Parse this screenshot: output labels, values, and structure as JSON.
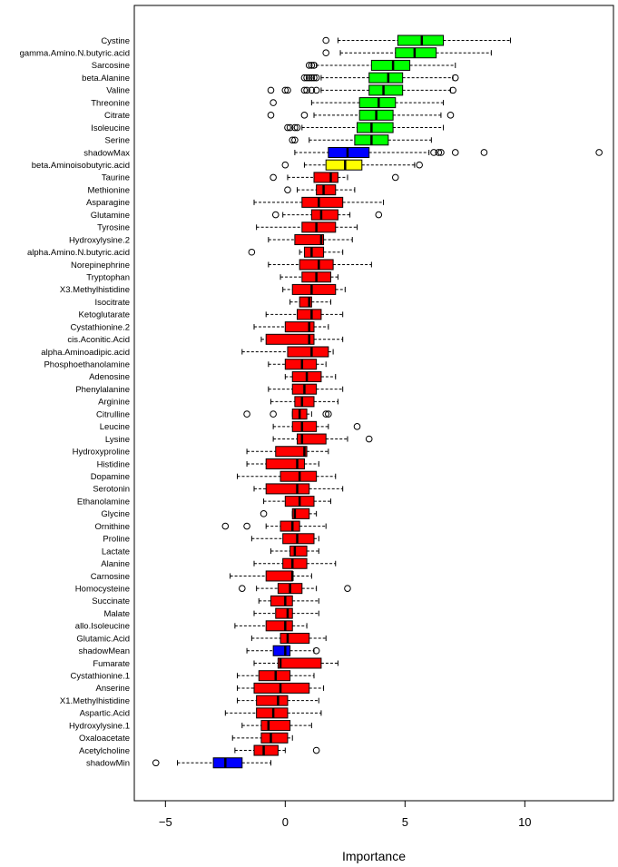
{
  "chart_data": {
    "type": "boxplot",
    "xlabel": "Importance",
    "ylabel": "",
    "xlim": [
      -6.3,
      13.7
    ],
    "xticks": [
      -5,
      0,
      5,
      10
    ],
    "colors": {
      "confirmed": "#00ff00",
      "tentative": "#ffff00",
      "rejected": "#ff0000",
      "shadow": "#0000ff"
    },
    "variables": [
      {
        "name": "Cystine",
        "status": "confirmed",
        "wlo": 2.2,
        "q1": 4.7,
        "med": 5.7,
        "q3": 6.6,
        "whi": 9.4,
        "outliers": [
          1.7
        ]
      },
      {
        "name": "gamma.Amino.N.butyric.acid",
        "status": "confirmed",
        "wlo": 2.3,
        "q1": 4.6,
        "med": 5.4,
        "q3": 6.3,
        "whi": 8.6,
        "outliers": [
          1.7
        ]
      },
      {
        "name": "Sarcosine",
        "status": "confirmed",
        "wlo": 1.3,
        "q1": 3.6,
        "med": 4.5,
        "q3": 5.2,
        "whi": 7.1,
        "outliers": [
          1.0,
          1.1,
          1.2
        ]
      },
      {
        "name": "beta.Alanine",
        "status": "confirmed",
        "wlo": 1.5,
        "q1": 3.5,
        "med": 4.3,
        "q3": 4.9,
        "whi": 7.0,
        "outliers": [
          0.8,
          0.9,
          1.0,
          1.1,
          1.2,
          1.3,
          7.1
        ]
      },
      {
        "name": "Valine",
        "status": "confirmed",
        "wlo": 1.5,
        "q1": 3.5,
        "med": 4.1,
        "q3": 4.9,
        "whi": 6.9,
        "outliers": [
          -0.6,
          0.0,
          0.1,
          0.8,
          0.9,
          1.1,
          1.3,
          7.0
        ]
      },
      {
        "name": "Threonine",
        "status": "confirmed",
        "wlo": 1.1,
        "q1": 3.1,
        "med": 3.9,
        "q3": 4.6,
        "whi": 6.6,
        "outliers": [
          -0.5
        ]
      },
      {
        "name": "Citrate",
        "status": "confirmed",
        "wlo": 1.2,
        "q1": 3.1,
        "med": 3.8,
        "q3": 4.5,
        "whi": 6.5,
        "outliers": [
          -0.6,
          0.8,
          6.9
        ]
      },
      {
        "name": "Isoleucine",
        "status": "confirmed",
        "wlo": 0.7,
        "q1": 3.0,
        "med": 3.6,
        "q3": 4.5,
        "whi": 6.6,
        "outliers": [
          0.1,
          0.2,
          0.4,
          0.5
        ]
      },
      {
        "name": "Serine",
        "status": "confirmed",
        "wlo": 1.0,
        "q1": 2.9,
        "med": 3.6,
        "q3": 4.3,
        "whi": 6.1,
        "outliers": [
          0.3,
          0.4
        ]
      },
      {
        "name": "shadowMax",
        "status": "shadow",
        "wlo": 0.4,
        "q1": 1.8,
        "med": 2.6,
        "q3": 3.5,
        "whi": 6.0,
        "outliers": [
          6.2,
          6.4,
          6.5,
          7.1,
          8.3,
          13.1
        ]
      },
      {
        "name": "beta.Aminoisobutyric.acid",
        "status": "tentative",
        "wlo": 0.8,
        "q1": 1.7,
        "med": 2.5,
        "q3": 3.2,
        "whi": 5.4,
        "outliers": [
          0.0,
          5.6
        ]
      },
      {
        "name": "Taurine",
        "status": "rejected",
        "wlo": 0.1,
        "q1": 1.2,
        "med": 1.9,
        "q3": 2.2,
        "whi": 2.6,
        "outliers": [
          -0.5,
          4.6
        ]
      },
      {
        "name": "Methionine",
        "status": "rejected",
        "wlo": 0.5,
        "q1": 1.3,
        "med": 1.6,
        "q3": 2.1,
        "whi": 2.9,
        "outliers": [
          0.1
        ]
      },
      {
        "name": "Asparagine",
        "status": "rejected",
        "wlo": -1.3,
        "q1": 0.7,
        "med": 1.4,
        "q3": 2.4,
        "whi": 4.1,
        "outliers": []
      },
      {
        "name": "Glutamine",
        "status": "rejected",
        "wlo": -0.1,
        "q1": 1.1,
        "med": 1.5,
        "q3": 2.2,
        "whi": 2.7,
        "outliers": [
          -0.4,
          3.9
        ]
      },
      {
        "name": "Tyrosine",
        "status": "rejected",
        "wlo": -1.2,
        "q1": 0.7,
        "med": 1.3,
        "q3": 2.1,
        "whi": 3.0,
        "outliers": []
      },
      {
        "name": "Hydroxylysine.2",
        "status": "rejected",
        "wlo": -0.7,
        "q1": 0.4,
        "med": 1.5,
        "q3": 1.6,
        "whi": 2.8,
        "outliers": []
      },
      {
        "name": "alpha.Amino.N.butyric.acid",
        "status": "rejected",
        "wlo": 0.6,
        "q1": 0.8,
        "med": 1.1,
        "q3": 1.6,
        "whi": 2.4,
        "outliers": [
          -1.4
        ]
      },
      {
        "name": "Norepinephrine",
        "status": "rejected",
        "wlo": -0.7,
        "q1": 0.6,
        "med": 1.4,
        "q3": 2.0,
        "whi": 3.6,
        "outliers": []
      },
      {
        "name": "Tryptophan",
        "status": "rejected",
        "wlo": -0.2,
        "q1": 0.7,
        "med": 1.3,
        "q3": 1.9,
        "whi": 2.2,
        "outliers": []
      },
      {
        "name": "X3.Methylhistidine",
        "status": "rejected",
        "wlo": -0.1,
        "q1": 0.3,
        "med": 1.1,
        "q3": 2.1,
        "whi": 2.5,
        "outliers": []
      },
      {
        "name": "Isocitrate",
        "status": "rejected",
        "wlo": 0.2,
        "q1": 0.6,
        "med": 1.0,
        "q3": 1.1,
        "whi": 1.9,
        "outliers": []
      },
      {
        "name": "Ketoglutarate",
        "status": "rejected",
        "wlo": -0.8,
        "q1": 0.5,
        "med": 1.1,
        "q3": 1.5,
        "whi": 2.4,
        "outliers": []
      },
      {
        "name": "Cystathionine.2",
        "status": "rejected",
        "wlo": -1.3,
        "q1": 0.0,
        "med": 1.0,
        "q3": 1.2,
        "whi": 1.8,
        "outliers": []
      },
      {
        "name": "cis.Aconitic.Acid",
        "status": "rejected",
        "wlo": -1.0,
        "q1": -0.8,
        "med": 1.0,
        "q3": 1.2,
        "whi": 2.4,
        "outliers": []
      },
      {
        "name": "alpha.Aminoadipic.acid",
        "status": "rejected",
        "wlo": -1.8,
        "q1": 0.1,
        "med": 1.1,
        "q3": 1.8,
        "whi": 2.0,
        "outliers": []
      },
      {
        "name": "Phosphoethanolamine",
        "status": "rejected",
        "wlo": -0.7,
        "q1": 0.0,
        "med": 0.7,
        "q3": 1.3,
        "whi": 1.7,
        "outliers": []
      },
      {
        "name": "Adenosine",
        "status": "rejected",
        "wlo": 0.0,
        "q1": 0.3,
        "med": 0.9,
        "q3": 1.5,
        "whi": 2.1,
        "outliers": []
      },
      {
        "name": "Phenylalanine",
        "status": "rejected",
        "wlo": -0.7,
        "q1": 0.3,
        "med": 0.8,
        "q3": 1.3,
        "whi": 2.4,
        "outliers": []
      },
      {
        "name": "Arginine",
        "status": "rejected",
        "wlo": -0.6,
        "q1": 0.4,
        "med": 0.7,
        "q3": 1.2,
        "whi": 2.2,
        "outliers": []
      },
      {
        "name": "Citrulline",
        "status": "rejected",
        "wlo": 0.3,
        "q1": 0.3,
        "med": 0.6,
        "q3": 0.9,
        "whi": 1.1,
        "outliers": [
          -1.6,
          -0.5,
          1.7,
          1.8
        ]
      },
      {
        "name": "Leucine",
        "status": "rejected",
        "wlo": -0.5,
        "q1": 0.3,
        "med": 0.7,
        "q3": 1.3,
        "whi": 1.8,
        "outliers": [
          3.0
        ]
      },
      {
        "name": "Lysine",
        "status": "rejected",
        "wlo": -0.5,
        "q1": 0.5,
        "med": 0.7,
        "q3": 1.7,
        "whi": 2.6,
        "outliers": [
          3.5
        ]
      },
      {
        "name": "Hydroxyproline",
        "status": "rejected",
        "wlo": -1.6,
        "q1": -0.4,
        "med": 0.8,
        "q3": 0.9,
        "whi": 1.8,
        "outliers": []
      },
      {
        "name": "Histidine",
        "status": "rejected",
        "wlo": -1.6,
        "q1": -0.8,
        "med": 0.5,
        "q3": 0.8,
        "whi": 1.4,
        "outliers": []
      },
      {
        "name": "Dopamine",
        "status": "rejected",
        "wlo": -2.0,
        "q1": -0.2,
        "med": 0.6,
        "q3": 1.3,
        "whi": 2.1,
        "outliers": []
      },
      {
        "name": "Serotonin",
        "status": "rejected",
        "wlo": -1.3,
        "q1": -0.8,
        "med": 0.5,
        "q3": 1.0,
        "whi": 2.4,
        "outliers": []
      },
      {
        "name": "Ethanolamine",
        "status": "rejected",
        "wlo": -0.9,
        "q1": 0.0,
        "med": 0.6,
        "q3": 1.2,
        "whi": 1.9,
        "outliers": []
      },
      {
        "name": "Glycine",
        "status": "rejected",
        "wlo": 0.3,
        "q1": 0.3,
        "med": 0.4,
        "q3": 1.0,
        "whi": 1.3,
        "outliers": [
          -0.9
        ]
      },
      {
        "name": "Ornithine",
        "status": "rejected",
        "wlo": -0.8,
        "q1": -0.2,
        "med": 0.3,
        "q3": 0.6,
        "whi": 1.7,
        "outliers": [
          -2.5,
          -1.6
        ]
      },
      {
        "name": "Proline",
        "status": "rejected",
        "wlo": -1.4,
        "q1": -0.1,
        "med": 0.5,
        "q3": 1.2,
        "whi": 1.4,
        "outliers": []
      },
      {
        "name": "Lactate",
        "status": "rejected",
        "wlo": -0.6,
        "q1": 0.2,
        "med": 0.4,
        "q3": 0.9,
        "whi": 1.4,
        "outliers": []
      },
      {
        "name": "Alanine",
        "status": "rejected",
        "wlo": -1.3,
        "q1": -0.1,
        "med": 0.3,
        "q3": 0.9,
        "whi": 2.1,
        "outliers": []
      },
      {
        "name": "Carnosine",
        "status": "rejected",
        "wlo": -2.3,
        "q1": -0.8,
        "med": 0.3,
        "q3": 0.3,
        "whi": 1.1,
        "outliers": []
      },
      {
        "name": "Homocysteine",
        "status": "rejected",
        "wlo": -1.2,
        "q1": -0.3,
        "med": 0.2,
        "q3": 0.7,
        "whi": 1.3,
        "outliers": [
          -1.8,
          2.6
        ]
      },
      {
        "name": "Succinate",
        "status": "rejected",
        "wlo": -1.1,
        "q1": -0.6,
        "med": 0.0,
        "q3": 0.3,
        "whi": 1.4,
        "outliers": []
      },
      {
        "name": "Malate",
        "status": "rejected",
        "wlo": -1.3,
        "q1": -0.4,
        "med": 0.1,
        "q3": 0.3,
        "whi": 1.4,
        "outliers": []
      },
      {
        "name": "allo.Isoleucine",
        "status": "rejected",
        "wlo": -2.1,
        "q1": -0.8,
        "med": 0.0,
        "q3": 0.3,
        "whi": 0.9,
        "outliers": []
      },
      {
        "name": "Glutamic.Acid",
        "status": "rejected",
        "wlo": -1.4,
        "q1": -0.2,
        "med": 0.1,
        "q3": 1.0,
        "whi": 1.7,
        "outliers": []
      },
      {
        "name": "shadowMean",
        "status": "shadow",
        "wlo": -1.6,
        "q1": -0.5,
        "med": 0.0,
        "q3": 0.2,
        "whi": 1.2,
        "outliers": [
          1.3
        ]
      },
      {
        "name": "Fumarate",
        "status": "rejected",
        "wlo": -1.3,
        "q1": -0.3,
        "med": -0.2,
        "q3": 1.5,
        "whi": 2.2,
        "outliers": []
      },
      {
        "name": "Cystathionine.1",
        "status": "rejected",
        "wlo": -2.0,
        "q1": -1.1,
        "med": -0.4,
        "q3": 0.2,
        "whi": 1.2,
        "outliers": []
      },
      {
        "name": "Anserine",
        "status": "rejected",
        "wlo": -2.0,
        "q1": -1.3,
        "med": -0.2,
        "q3": 1.0,
        "whi": 1.6,
        "outliers": []
      },
      {
        "name": "X1.Methylhistidine",
        "status": "rejected",
        "wlo": -2.0,
        "q1": -1.2,
        "med": -0.3,
        "q3": 0.1,
        "whi": 1.4,
        "outliers": []
      },
      {
        "name": "Aspartic.Acid",
        "status": "rejected",
        "wlo": -2.5,
        "q1": -1.2,
        "med": -0.5,
        "q3": 0.1,
        "whi": 1.5,
        "outliers": []
      },
      {
        "name": "Hydroxylysine.1",
        "status": "rejected",
        "wlo": -1.8,
        "q1": -1.0,
        "med": -0.7,
        "q3": 0.2,
        "whi": 1.1,
        "outliers": []
      },
      {
        "name": "Oxaloacetate",
        "status": "rejected",
        "wlo": -2.2,
        "q1": -1.0,
        "med": -0.6,
        "q3": 0.1,
        "whi": 0.3,
        "outliers": []
      },
      {
        "name": "Acetylcholine",
        "status": "rejected",
        "wlo": -2.1,
        "q1": -1.3,
        "med": -0.9,
        "q3": -0.3,
        "whi": 0.0,
        "outliers": [
          1.3
        ]
      },
      {
        "name": "shadowMin",
        "status": "shadow",
        "wlo": -4.5,
        "q1": -3.0,
        "med": -2.5,
        "q3": -1.8,
        "whi": -0.6,
        "outliers": [
          -5.4
        ]
      }
    ]
  }
}
